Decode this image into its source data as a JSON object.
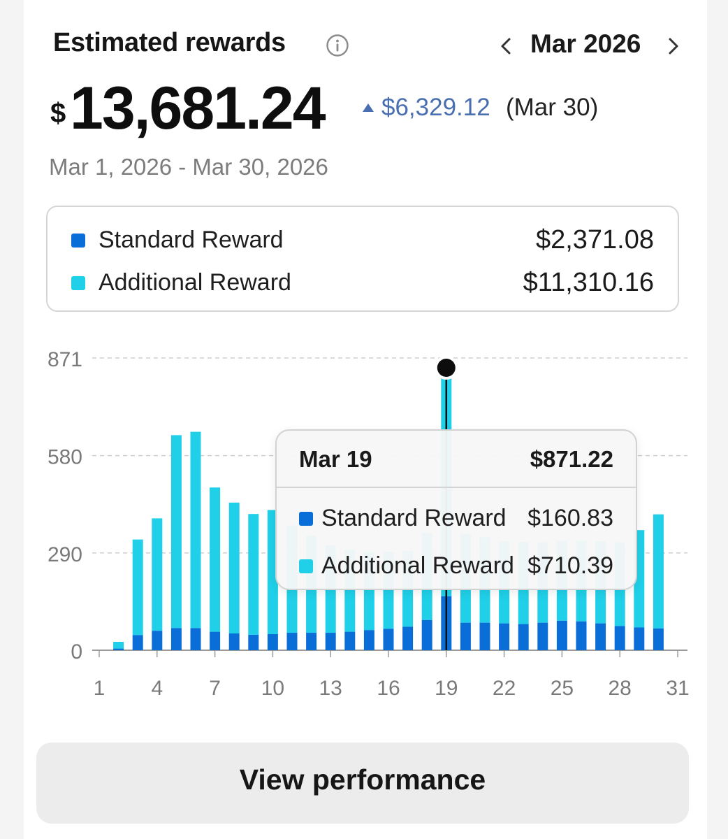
{
  "header": {
    "title": "Estimated rewards",
    "month": "Mar 2026"
  },
  "summary": {
    "currency_symbol": "$",
    "total": "13,681.24",
    "delta": "$6,329.12",
    "delta_date": "(Mar 30)",
    "date_range": "Mar 1, 2026 - Mar 30, 2026"
  },
  "legend": [
    {
      "label": "Standard Reward",
      "value": "$2,371.08",
      "color": "#0a6ed8"
    },
    {
      "label": "Additional Reward",
      "value": "$11,310.16",
      "color": "#1fd0e8"
    }
  ],
  "chart_data": {
    "type": "bar",
    "stacked": true,
    "x": [
      2,
      3,
      4,
      5,
      6,
      7,
      8,
      9,
      10,
      11,
      12,
      13,
      14,
      15,
      16,
      17,
      18,
      19,
      20,
      21,
      22,
      23,
      24,
      25,
      26,
      27,
      28,
      29,
      30
    ],
    "series": [
      {
        "name": "Standard Reward",
        "values": [
          5,
          45,
          58,
          66,
          66,
          55,
          50,
          46,
          48,
          52,
          52,
          52,
          55,
          60,
          64,
          70,
          90,
          160.83,
          82,
          82,
          80,
          78,
          82,
          88,
          86,
          80,
          72,
          68,
          65
        ]
      },
      {
        "name": "Additional Reward",
        "values": [
          20,
          285,
          335,
          575,
          585,
          430,
          390,
          360,
          370,
          320,
          290,
          260,
          245,
          232,
          230,
          225,
          260,
          710.39,
          265,
          255,
          245,
          245,
          240,
          238,
          240,
          245,
          250,
          290,
          340
        ]
      }
    ],
    "xticks": [
      "1",
      "4",
      "7",
      "10",
      "13",
      "16",
      "19",
      "22",
      "25",
      "28",
      "31"
    ],
    "xtick_values": [
      1,
      4,
      7,
      10,
      13,
      16,
      19,
      22,
      25,
      28,
      31
    ],
    "yticks": [
      "0",
      "290",
      "580",
      "871"
    ],
    "ytick_values": [
      0,
      290,
      580,
      871
    ],
    "xlim": [
      1,
      31
    ],
    "ylim": [
      0,
      871
    ],
    "grid": true,
    "selected_x": 19
  },
  "tooltip": {
    "date": "Mar 19",
    "total": "$871.22",
    "rows": [
      {
        "label": "Standard Reward",
        "value": "$160.83",
        "color": "#0a6ed8"
      },
      {
        "label": "Additional Reward",
        "value": "$710.39",
        "color": "#1fd0e8"
      }
    ]
  },
  "actions": {
    "view_performance": "View performance"
  }
}
